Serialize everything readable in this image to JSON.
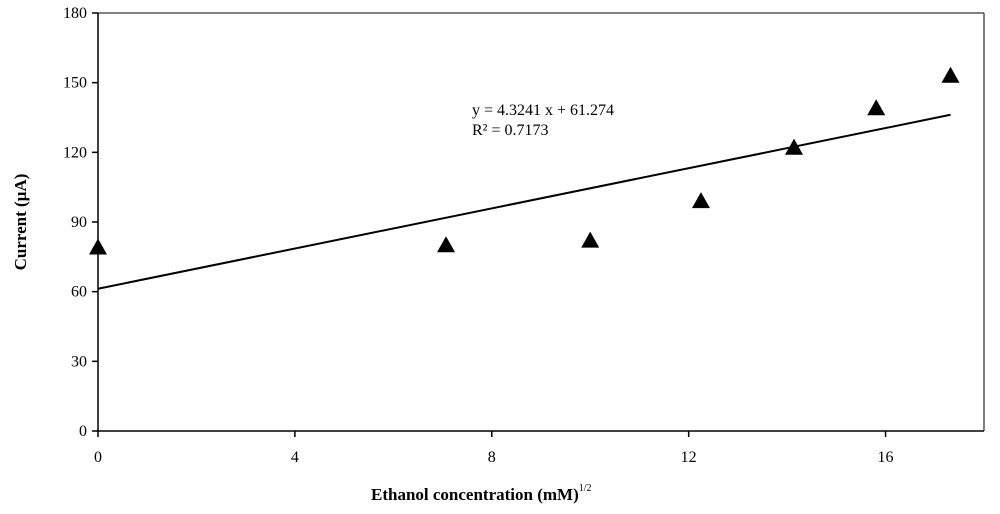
{
  "chart_data": {
    "type": "scatter",
    "title": "",
    "xlabel": "Ethanol concentration (mM)",
    "xlabel_superscript": "1/2",
    "ylabel": "Current (µA)",
    "xlim": [
      0,
      18
    ],
    "ylim": [
      0,
      180
    ],
    "xticks": [
      "0",
      "4",
      "8",
      "12",
      "16"
    ],
    "yticks": [
      "0",
      "30",
      "60",
      "90",
      "120",
      "150",
      "180"
    ],
    "grid": false,
    "legend": "none",
    "marker": "triangle",
    "marker_color": "#000000",
    "series": [
      {
        "x": [
          0,
          7.07,
          10.0,
          12.25,
          14.14,
          15.81,
          17.32
        ],
        "y": [
          79,
          80,
          82,
          99,
          122,
          139,
          153
        ]
      }
    ],
    "trendline": {
      "type": "linear",
      "slope": 4.3241,
      "intercept": 61.274,
      "x_range": [
        0,
        17.32
      ],
      "equation": "y = 4.3241 x + 61.274",
      "r_squared_label": "R² = 0.7173"
    }
  }
}
